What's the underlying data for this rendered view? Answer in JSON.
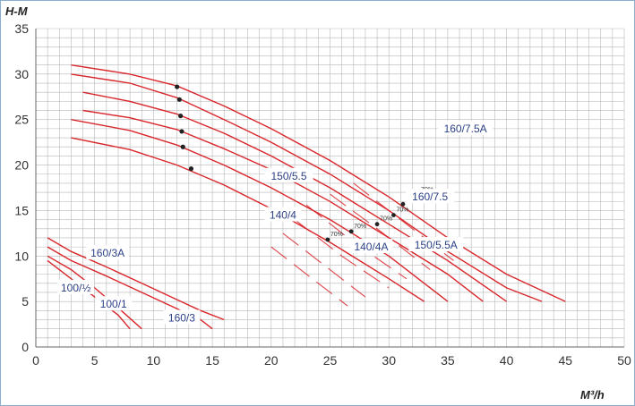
{
  "chart_data": {
    "type": "line",
    "xlabel": "M³/h",
    "ylabel": "H-M",
    "xlim": [
      0,
      50
    ],
    "ylim": [
      0,
      35
    ],
    "x_ticks": [
      "0",
      "5",
      "10",
      "15",
      "20",
      "25",
      "30",
      "35",
      "40",
      "45",
      "50"
    ],
    "y_ticks": [
      "0",
      "5",
      "10",
      "15",
      "20",
      "25",
      "30",
      "35"
    ],
    "grid": true,
    "colors": {
      "curve": "#d9262b",
      "grid": "#b7b7b7",
      "frame": "#8aaed0",
      "label": "#2b3f86",
      "marker": "#222222"
    },
    "series": [
      {
        "name": "160/7.5A",
        "x": [
          3,
          8,
          12,
          16,
          20,
          25,
          30,
          35,
          40,
          45
        ],
        "y": [
          31,
          30,
          28.7,
          26.5,
          24,
          20.5,
          16.5,
          12,
          8,
          5
        ]
      },
      {
        "name": "160/7.5",
        "x": [
          3,
          8,
          12,
          16,
          20,
          25,
          30,
          35,
          40,
          43
        ],
        "y": [
          30,
          29,
          27.4,
          25,
          22.5,
          19,
          15,
          10.5,
          6.5,
          5
        ]
      },
      {
        "name": "150/5.5A",
        "x": [
          4,
          8,
          12,
          16,
          20,
          25,
          30,
          35,
          40
        ],
        "y": [
          28,
          27,
          25.6,
          23.5,
          21,
          17.5,
          13.5,
          9.5,
          5
        ]
      },
      {
        "name": "150/5.5",
        "x": [
          4,
          8,
          12,
          16,
          20,
          25,
          30,
          35,
          38
        ],
        "y": [
          26,
          25.2,
          23.9,
          21.8,
          19.5,
          16,
          12,
          8,
          5
        ]
      },
      {
        "name": "140/4A",
        "x": [
          3,
          8,
          12,
          16,
          20,
          25,
          30,
          35
        ],
        "y": [
          25,
          23.8,
          22.2,
          20,
          17.5,
          14,
          10,
          5
        ]
      },
      {
        "name": "140/4",
        "x": [
          3,
          8,
          12,
          16,
          20,
          25,
          30,
          33
        ],
        "y": [
          23,
          21.7,
          20,
          17.8,
          15.2,
          11.5,
          7.5,
          5
        ]
      },
      {
        "name": "160/3A",
        "x": [
          1,
          3,
          6,
          9,
          12,
          14,
          16
        ],
        "y": [
          12,
          10.5,
          8.8,
          7,
          5.2,
          4,
          3
        ]
      },
      {
        "name": "160/3",
        "x": [
          1,
          3,
          6,
          9,
          12,
          14,
          15
        ],
        "y": [
          11,
          9.5,
          7.8,
          6,
          4.2,
          3,
          2
        ]
      },
      {
        "name": "100/1",
        "x": [
          1,
          3,
          5,
          7,
          9
        ],
        "y": [
          10,
          8.5,
          6.5,
          4.3,
          2
        ]
      },
      {
        "name": "100/½",
        "x": [
          1,
          3,
          5,
          7,
          8
        ],
        "y": [
          9.5,
          7.5,
          5.5,
          3.5,
          2
        ]
      }
    ],
    "efficiency_segments": [
      {
        "label": "70%",
        "x": [
          27,
          31,
          35.5
        ],
        "y": [
          18,
          14,
          9.5
        ]
      },
      {
        "label": "70%",
        "x": [
          25,
          29,
          33.5
        ],
        "y": [
          16.8,
          13,
          8.5
        ]
      },
      {
        "label": "70%",
        "x": [
          23,
          27,
          31.5
        ],
        "y": [
          15.6,
          11.5,
          7.5
        ]
      },
      {
        "label": "70%",
        "x": [
          22,
          26,
          30
        ],
        "y": [
          14,
          10,
          6.5
        ]
      },
      {
        "label": "70%",
        "x": [
          21,
          24.5,
          28
        ],
        "y": [
          12.5,
          9,
          5.5
        ]
      },
      {
        "label": "70%",
        "x": [
          20,
          23.5,
          26.5
        ],
        "y": [
          11,
          7.5,
          4.5
        ]
      }
    ],
    "markers_upper": {
      "x": [
        12,
        12.2,
        12.3,
        12.4,
        12.5,
        13.2
      ],
      "y": [
        28.6,
        27.2,
        25.4,
        23.7,
        22,
        19.6
      ]
    },
    "markers_eff": {
      "points": [
        {
          "x": 32.5,
          "y": 16.7,
          "label": "70%"
        },
        {
          "x": 31.2,
          "y": 15.7,
          "label": "70%"
        },
        {
          "x": 30.4,
          "y": 14.5,
          "label": "70%"
        },
        {
          "x": 29,
          "y": 13.5,
          "label": "70%"
        },
        {
          "x": 26.8,
          "y": 12.7,
          "label": "70%"
        },
        {
          "x": 24.8,
          "y": 11.8,
          "label": "70%"
        }
      ]
    },
    "curve_labels": [
      {
        "text": "160/7.5A",
        "x": 36.5,
        "y": 24
      },
      {
        "text": "160/7.5",
        "x": 33.5,
        "y": 16.5
      },
      {
        "text": "150/5.5",
        "x": 21.5,
        "y": 18.8
      },
      {
        "text": "150/5.5A",
        "x": 34,
        "y": 11.2
      },
      {
        "text": "140/4",
        "x": 21,
        "y": 14.5
      },
      {
        "text": "140/4A",
        "x": 28.5,
        "y": 11
      },
      {
        "text": "160/3A",
        "x": 6.1,
        "y": 10.3
      },
      {
        "text": "100/½",
        "x": 3.4,
        "y": 6.5
      },
      {
        "text": "100/1",
        "x": 6.6,
        "y": 4.7
      },
      {
        "text": "160/3",
        "x": 12.4,
        "y": 3.2
      }
    ]
  }
}
